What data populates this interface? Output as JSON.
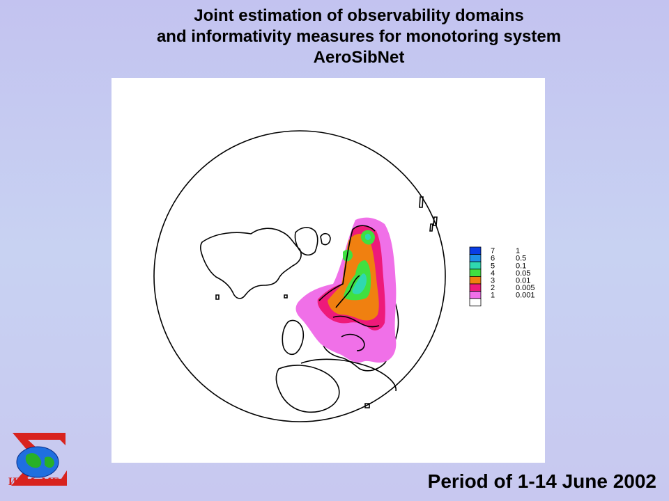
{
  "title": {
    "line1": "Joint estimation of observability domains",
    "line2": "and informativity measures  for monotoring system",
    "line3": "AeroSibNet"
  },
  "footer": {
    "period": "Period  of  1-14 June 2002"
  },
  "logo": {
    "text": "ИВМиМГ"
  },
  "legend": {
    "items": [
      {
        "level": "7",
        "value": "1",
        "color": "#0a3ee6"
      },
      {
        "level": "6",
        "value": "0.5",
        "color": "#1e90e8"
      },
      {
        "level": "5",
        "value": "0.1",
        "color": "#2fd8b0"
      },
      {
        "level": "4",
        "value": "0.05",
        "color": "#40e040"
      },
      {
        "level": "3",
        "value": "0.01",
        "color": "#f08010"
      },
      {
        "level": "2",
        "value": "0.005",
        "color": "#ee1a7a"
      },
      {
        "level": "1",
        "value": "0.001",
        "color": "#f070e8"
      },
      {
        "level": "",
        "value": "",
        "color": "#ffffff"
      }
    ]
  }
}
